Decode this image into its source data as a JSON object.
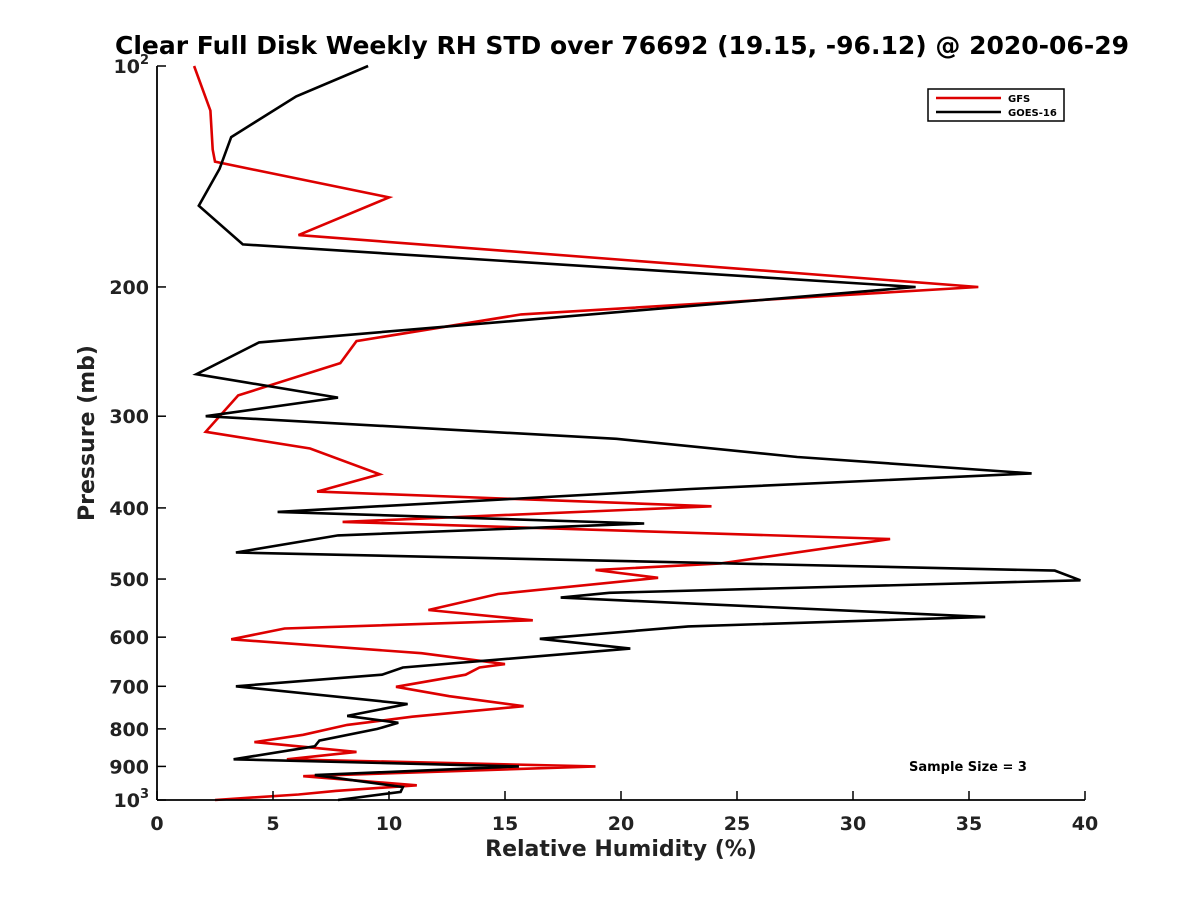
{
  "chart_data": {
    "type": "line",
    "title": "Clear Full Disk Weekly RH STD over 76692 (19.15, -96.12) @ 2020-06-29",
    "xlabel": "Relative Humidity (%)",
    "ylabel": "Pressure (mb)",
    "xlim": [
      0,
      40
    ],
    "ylim": [
      100,
      1000
    ],
    "yscale": "log",
    "y_reversed": true,
    "xticks": [
      0,
      5,
      10,
      15,
      20,
      25,
      30,
      35,
      40
    ],
    "yticks": [
      {
        "value": 100,
        "base": "10",
        "exp": "2"
      },
      {
        "value": 200,
        "label": "200"
      },
      {
        "value": 300,
        "label": "300"
      },
      {
        "value": 400,
        "label": "400"
      },
      {
        "value": 500,
        "label": "500"
      },
      {
        "value": 600,
        "label": "600"
      },
      {
        "value": 700,
        "label": "700"
      },
      {
        "value": 800,
        "label": "800"
      },
      {
        "value": 900,
        "label": "900"
      },
      {
        "value": 1000,
        "base": "10",
        "exp": "3"
      }
    ],
    "grid": false,
    "legend_position": "top-right",
    "annotation": "Sample Size = 3",
    "series": [
      {
        "name": "GFS",
        "color": "#dd0000",
        "points": [
          [
            1.6,
            100
          ],
          [
            2.3,
            115
          ],
          [
            2.4,
            130
          ],
          [
            2.5,
            135
          ],
          [
            10.0,
            151
          ],
          [
            6.1,
            170
          ],
          [
            35.4,
            200
          ],
          [
            15.7,
            218
          ],
          [
            8.6,
            237
          ],
          [
            7.9,
            254
          ],
          [
            3.5,
            281
          ],
          [
            2.1,
            315
          ],
          [
            6.6,
            332
          ],
          [
            9.6,
            360
          ],
          [
            6.9,
            380
          ],
          [
            23.9,
            398
          ],
          [
            8.0,
            418
          ],
          [
            31.6,
            441
          ],
          [
            24.3,
            476
          ],
          [
            18.9,
            486
          ],
          [
            21.6,
            498
          ],
          [
            14.7,
            524
          ],
          [
            11.7,
            551
          ],
          [
            16.2,
            569
          ],
          [
            5.5,
            584
          ],
          [
            3.2,
            604
          ],
          [
            11.4,
            631
          ],
          [
            15.0,
            653
          ],
          [
            13.9,
            660
          ],
          [
            13.3,
            675
          ],
          [
            10.3,
            701
          ],
          [
            12.6,
            722
          ],
          [
            15.8,
            745
          ],
          [
            11.0,
            770
          ],
          [
            8.2,
            790
          ],
          [
            6.3,
            815
          ],
          [
            4.2,
            834
          ],
          [
            8.6,
            860
          ],
          [
            5.6,
            880
          ],
          [
            18.9,
            900
          ],
          [
            6.3,
            928
          ],
          [
            11.2,
            955
          ],
          [
            7.7,
            972
          ],
          [
            6.1,
            983
          ],
          [
            2.5,
            1000
          ]
        ]
      },
      {
        "name": "GOES-16",
        "color": "#000000",
        "points": [
          [
            9.1,
            100
          ],
          [
            6.0,
            110
          ],
          [
            3.2,
            125
          ],
          [
            2.7,
            138
          ],
          [
            1.8,
            155
          ],
          [
            3.7,
            175
          ],
          [
            32.7,
            200
          ],
          [
            4.4,
            238
          ],
          [
            1.7,
            263
          ],
          [
            7.8,
            283
          ],
          [
            2.1,
            300
          ],
          [
            19.8,
            322
          ],
          [
            27.6,
            341
          ],
          [
            37.7,
            359
          ],
          [
            23.0,
            377
          ],
          [
            5.2,
            405
          ],
          [
            21.0,
            420
          ],
          [
            7.8,
            436
          ],
          [
            3.4,
            460
          ],
          [
            38.7,
            487
          ],
          [
            39.8,
            502
          ],
          [
            19.5,
            522
          ],
          [
            17.4,
            530
          ],
          [
            35.7,
            563
          ],
          [
            22.9,
            580
          ],
          [
            16.5,
            603
          ],
          [
            20.4,
            622
          ],
          [
            10.6,
            660
          ],
          [
            9.7,
            675
          ],
          [
            3.4,
            700
          ],
          [
            10.8,
            740
          ],
          [
            8.2,
            768
          ],
          [
            10.4,
            785
          ],
          [
            9.5,
            800
          ],
          [
            7.0,
            830
          ],
          [
            6.8,
            845
          ],
          [
            3.3,
            880
          ],
          [
            15.6,
            900
          ],
          [
            6.8,
            925
          ],
          [
            10.6,
            960
          ],
          [
            10.5,
            975
          ],
          [
            7.8,
            1000
          ]
        ]
      }
    ]
  }
}
